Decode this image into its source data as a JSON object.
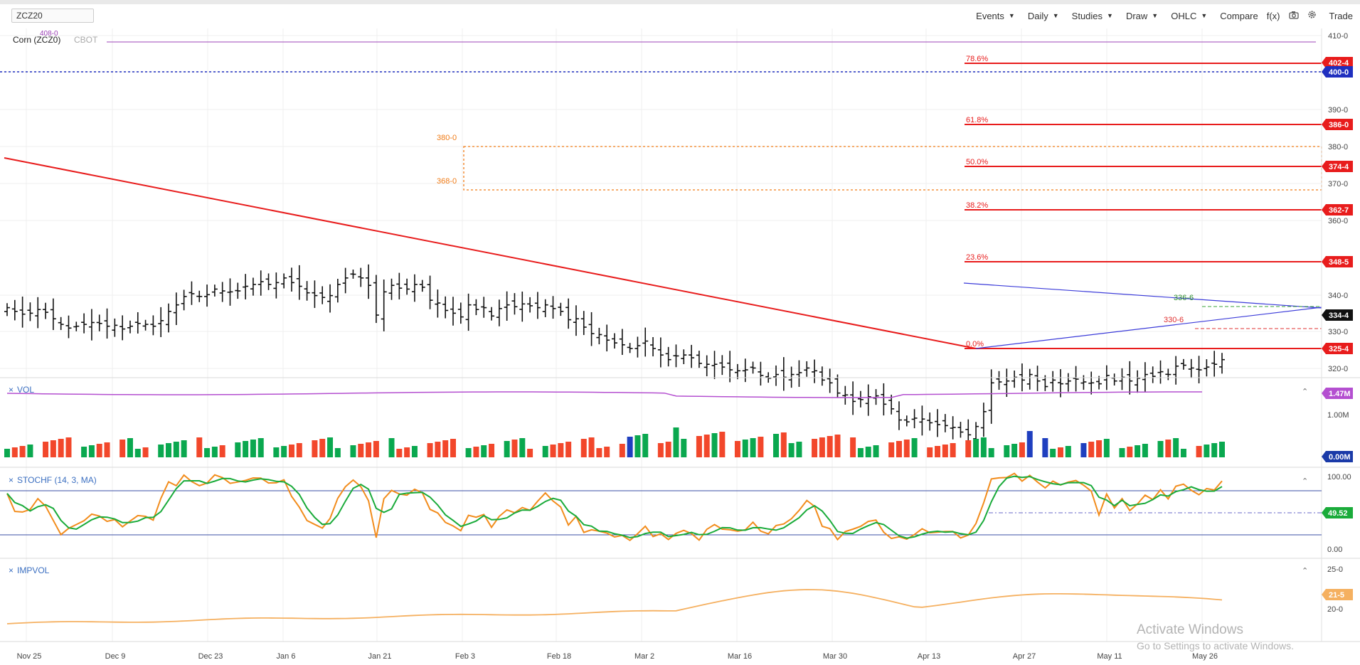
{
  "symbol": "ZCZ20",
  "instrument": {
    "name": "Corn (ZCZ0)",
    "exchange": "CBOT"
  },
  "toolbar": {
    "events": "Events",
    "interval": "Daily",
    "studies": "Studies",
    "draw": "Draw",
    "chart_style": "OHLC",
    "compare": "Compare",
    "fx": "f(x)",
    "trade": "Trade",
    "icons": [
      "camera-icon",
      "gear-icon"
    ]
  },
  "colors": {
    "up": "#0aa84f",
    "down": "#f2472b",
    "neutral": "#1f3fbf",
    "fib": "#e81c1c",
    "box": "#f07c18",
    "trend_blue": "#3333cc",
    "stoch_fast": "#f28c1c",
    "stoch_slow": "#1aab3a",
    "impvol": "#f5b060",
    "vol_line": "#b44fd0"
  },
  "price_axis": {
    "ticks": [
      "410-0",
      "390-0",
      "380-0",
      "370-0",
      "360-0",
      "340-0",
      "330-0",
      "320-0"
    ],
    "badges": [
      {
        "label": "402-4",
        "color": "#e81c1c"
      },
      {
        "label": "400-0",
        "color": "#1f2fbf"
      },
      {
        "label": "386-0",
        "color": "#e81c1c"
      },
      {
        "label": "374-4",
        "color": "#e81c1c"
      },
      {
        "label": "362-7",
        "color": "#e81c1c"
      },
      {
        "label": "348-5",
        "color": "#e81c1c"
      },
      {
        "label": "334-4",
        "color": "#111111"
      },
      {
        "label": "325-4",
        "color": "#e81c1c"
      }
    ]
  },
  "fib_labels": [
    "78.6%",
    "61.8%",
    "50.0%",
    "38.2%",
    "23.6%",
    "0.0%"
  ],
  "box_labels": {
    "top": "380-0",
    "bottom": "368-0"
  },
  "annotations": {
    "top_cut": "408-0",
    "green_level": "336-6",
    "red_level": "330-6"
  },
  "x_axis": [
    "Nov 25",
    "Dec 9",
    "Dec 23",
    "Jan 6",
    "Jan 21",
    "Feb 3",
    "Feb 18",
    "Mar 2",
    "Mar 16",
    "Mar 30",
    "Apr 13",
    "Apr 27",
    "May 11",
    "May 26"
  ],
  "volume": {
    "label": "VOL",
    "ticks": [
      "1.00M"
    ],
    "badges": [
      {
        "label": "1.47M",
        "color": "#b44fd0"
      },
      {
        "label": "0.00M",
        "color": "#1a3aa8"
      }
    ]
  },
  "stoch": {
    "label": "STOCHF (14, 3, MA)",
    "ticks": [
      "100.00",
      "0.00"
    ],
    "badge": "49.52"
  },
  "impvol": {
    "label": "IMPVOL",
    "ticks": [
      "25-0",
      "20-0"
    ],
    "badge": "21-5"
  },
  "panel_controls": {
    "close": "×",
    "collapse": "⌃"
  },
  "windows": {
    "line1": "Activate Windows",
    "line2": "Go to Settings to activate Windows."
  },
  "chart_data": {
    "type": "bar",
    "ohlc_close": [
      336.5,
      335.5,
      334.75,
      335,
      336,
      335.25,
      333.5,
      332,
      331,
      331.5,
      332,
      332.5,
      332.25,
      331.5,
      331.75,
      330.75,
      331.5,
      332.25,
      332,
      331.5,
      333,
      335.5,
      337.25,
      339.5,
      340.25,
      339.5,
      340,
      341.5,
      341,
      340.75,
      341,
      342.25,
      342.75,
      343.5,
      342.75,
      343.25,
      344.5,
      343.25,
      342.25,
      340.5,
      339.75,
      339.25,
      339.75,
      342.75,
      344.5,
      345.5,
      344.5,
      342.5,
      334.5,
      340.75,
      342.5,
      341.75,
      341.5,
      342.75,
      342,
      338.5,
      337.75,
      335.75,
      335,
      334,
      337.25,
      336,
      336.5,
      334.25,
      336.25,
      337.25,
      336.75,
      337.5,
      337,
      336.5,
      337.25,
      336.25,
      335.5,
      333.25,
      333.5,
      331.25,
      329.5,
      329.25,
      327.75,
      327,
      326.5,
      325.5,
      326.25,
      327.5,
      325.5,
      323.75,
      322.5,
      323.5,
      323.75,
      323,
      321.5,
      321.25,
      321.25,
      320.5,
      319.75,
      319.5,
      319.75,
      320.25,
      318.25,
      317.5,
      318.5,
      317.75,
      318.5,
      319,
      320.25,
      319.5,
      317,
      316.25,
      313.5,
      313,
      311.25,
      311.75,
      312.5,
      312.75,
      310.5,
      309.25,
      306.25,
      305.75,
      306.75,
      306.5,
      305.5,
      305,
      304.75,
      304.25,
      303,
      302.25,
      304.5,
      308.5,
      316.25,
      316.5,
      316.75,
      317.75,
      317,
      318.5,
      316.75,
      315.25,
      317,
      316,
      316.75,
      317.25,
      316.5,
      316.25,
      316,
      318.25,
      316.75,
      317.75,
      316.75,
      317.5,
      318.5,
      318,
      319.25,
      318.5,
      320.75,
      321,
      320.25,
      319.75,
      320.5,
      321.25,
      322.5
    ],
    "x": [
      "Nov 25",
      "Dec 9",
      "Dec 23",
      "Jan 6",
      "Jan 21",
      "Feb 3",
      "Feb 18",
      "Mar 2",
      "Mar 16",
      "Mar 30",
      "Apr 13",
      "Apr 27",
      "May 11",
      "May 26"
    ],
    "price_levels": {
      "line_400": 400.0,
      "fib_786": 402.5,
      "fib_618": 386.0,
      "fib_500": 374.5,
      "fib_382": 362.875,
      "fib_236": 348.625,
      "fib_000": 325.5,
      "last": 334.5,
      "box_top": 380.0,
      "box_bottom": 368.0,
      "green_dash": 336.75,
      "red_dash": 330.75
    }
  }
}
